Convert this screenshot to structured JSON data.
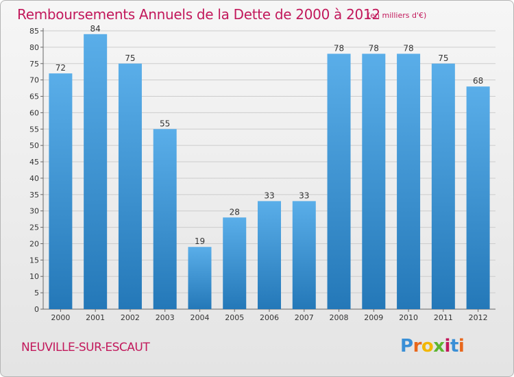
{
  "title": "Remboursements Annuels de la Dette de 2000 à 2012",
  "subtitle": "(en milliers d'€)",
  "town": "NEUVILLE-SUR-ESCAUT",
  "logo": {
    "letters": [
      "P",
      "r",
      "o",
      "x",
      "i",
      "t",
      "i"
    ],
    "colors": [
      "#3a8fd6",
      "#e8671c",
      "#f2b705",
      "#5cb531",
      "#c2185b",
      "#3a8fd6",
      "#e8671c"
    ]
  },
  "colors": {
    "bar_top": "#5aaee9",
    "bar_bottom": "#2478b8",
    "grid": "#cccccc",
    "title": "#c2185b"
  },
  "chart_data": {
    "type": "bar",
    "title": "Remboursements Annuels de la Dette de 2000 à 2012",
    "subtitle": "(en milliers d'€)",
    "xlabel": "",
    "ylabel": "",
    "categories": [
      "2000",
      "2001",
      "2002",
      "2003",
      "2004",
      "2005",
      "2006",
      "2007",
      "2008",
      "2009",
      "2010",
      "2011",
      "2012"
    ],
    "values": [
      72,
      84,
      75,
      55,
      19,
      28,
      33,
      33,
      78,
      78,
      78,
      75,
      68
    ],
    "ylim": [
      0,
      85
    ],
    "yticks": [
      0,
      5,
      10,
      15,
      20,
      25,
      30,
      35,
      40,
      45,
      50,
      55,
      60,
      65,
      70,
      75,
      80,
      85
    ],
    "grid": true,
    "data_labels": true
  }
}
